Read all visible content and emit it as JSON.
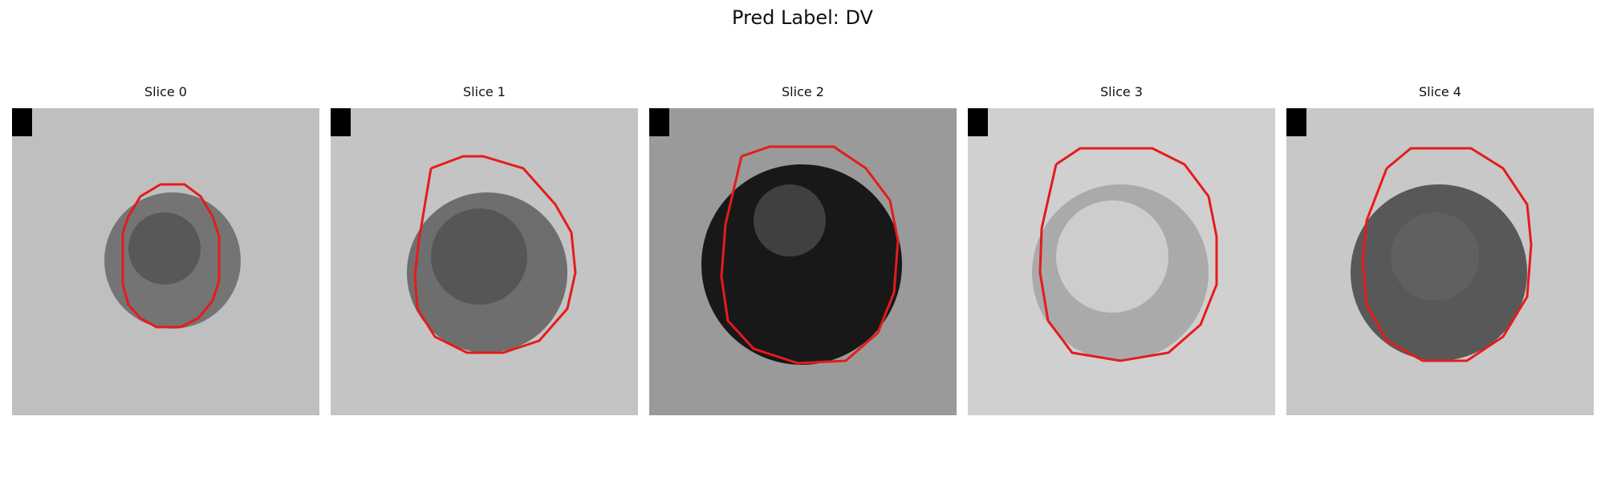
{
  "title": "Pred Label: DV",
  "colors": {
    "outline": "#e61b1b",
    "background": "#ffffff"
  },
  "slices": [
    {
      "label": "Slice 0"
    },
    {
      "label": "Slice 1"
    },
    {
      "label": "Slice 2"
    },
    {
      "label": "Slice 3"
    },
    {
      "label": "Slice 4"
    }
  ]
}
